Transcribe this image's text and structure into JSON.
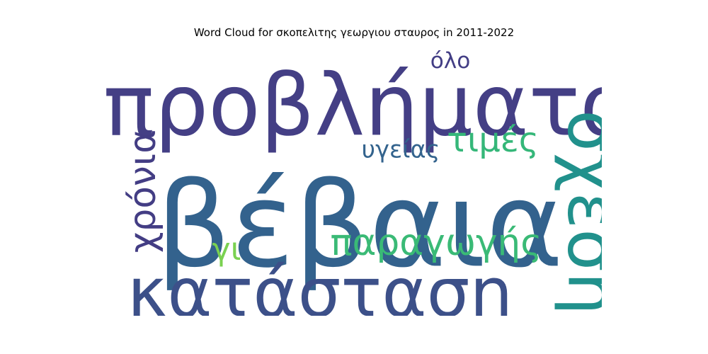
{
  "chart_data": {
    "type": "wordcloud",
    "title": "Word Cloud for σκοπελιτης γεωργιου σταυρος in 2011-2022",
    "words": [
      {
        "text": "προβλήματα",
        "weight": 1.0,
        "orientation": "horizontal",
        "color": "#443f85"
      },
      {
        "text": "βέβαια",
        "weight": 0.98,
        "orientation": "horizontal",
        "color": "#33628d"
      },
      {
        "text": "κατάσταση",
        "weight": 0.72,
        "orientation": "horizontal",
        "color": "#3c5089"
      },
      {
        "text": "σχέση",
        "weight": 0.62,
        "orientation": "vertical",
        "color": "#21918c"
      },
      {
        "text": "παραγωγής",
        "weight": 0.37,
        "orientation": "horizontal",
        "color": "#3aba76"
      },
      {
        "text": "χρόνια",
        "weight": 0.33,
        "orientation": "vertical",
        "color": "#433d84"
      },
      {
        "text": "τιμές",
        "weight": 0.33,
        "orientation": "horizontal",
        "color": "#35b779"
      },
      {
        "text": "υγείας",
        "weight": 0.23,
        "orientation": "horizontal",
        "color": "#33638d"
      },
      {
        "text": "γι",
        "weight": 0.3,
        "orientation": "horizontal",
        "color": "#7ad151"
      },
      {
        "text": "όλο",
        "weight": 0.22,
        "orientation": "horizontal",
        "color": "#433e85"
      }
    ]
  }
}
